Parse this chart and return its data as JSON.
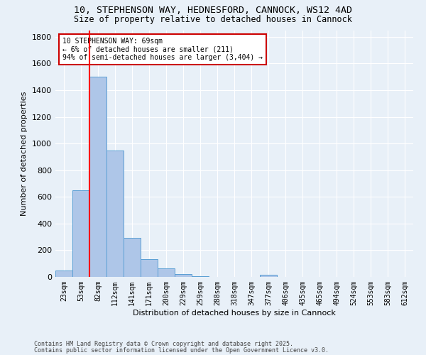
{
  "title_line1": "10, STEPHENSON WAY, HEDNESFORD, CANNOCK, WS12 4AD",
  "title_line2": "Size of property relative to detached houses in Cannock",
  "xlabel": "Distribution of detached houses by size in Cannock",
  "ylabel": "Number of detached properties",
  "bin_labels": [
    "23sqm",
    "53sqm",
    "82sqm",
    "112sqm",
    "141sqm",
    "171sqm",
    "200sqm",
    "229sqm",
    "259sqm",
    "288sqm",
    "318sqm",
    "347sqm",
    "377sqm",
    "406sqm",
    "435sqm",
    "465sqm",
    "494sqm",
    "524sqm",
    "553sqm",
    "583sqm",
    "612sqm"
  ],
  "bar_heights": [
    48,
    650,
    1500,
    950,
    295,
    135,
    65,
    22,
    5,
    0,
    0,
    0,
    15,
    0,
    0,
    0,
    0,
    0,
    0,
    0,
    0
  ],
  "bar_color": "#aec6e8",
  "bar_edge_color": "#5a9fd4",
  "background_color": "#e8f0f8",
  "grid_color": "#ffffff",
  "annotation_text": "10 STEPHENSON WAY: 69sqm\n← 6% of detached houses are smaller (211)\n94% of semi-detached houses are larger (3,404) →",
  "annotation_box_color": "#ffffff",
  "annotation_box_edge": "#cc0000",
  "ylim": [
    0,
    1850
  ],
  "yticks": [
    0,
    200,
    400,
    600,
    800,
    1000,
    1200,
    1400,
    1600,
    1800
  ],
  "footer_line1": "Contains HM Land Registry data © Crown copyright and database right 2025.",
  "footer_line2": "Contains public sector information licensed under the Open Government Licence v3.0."
}
